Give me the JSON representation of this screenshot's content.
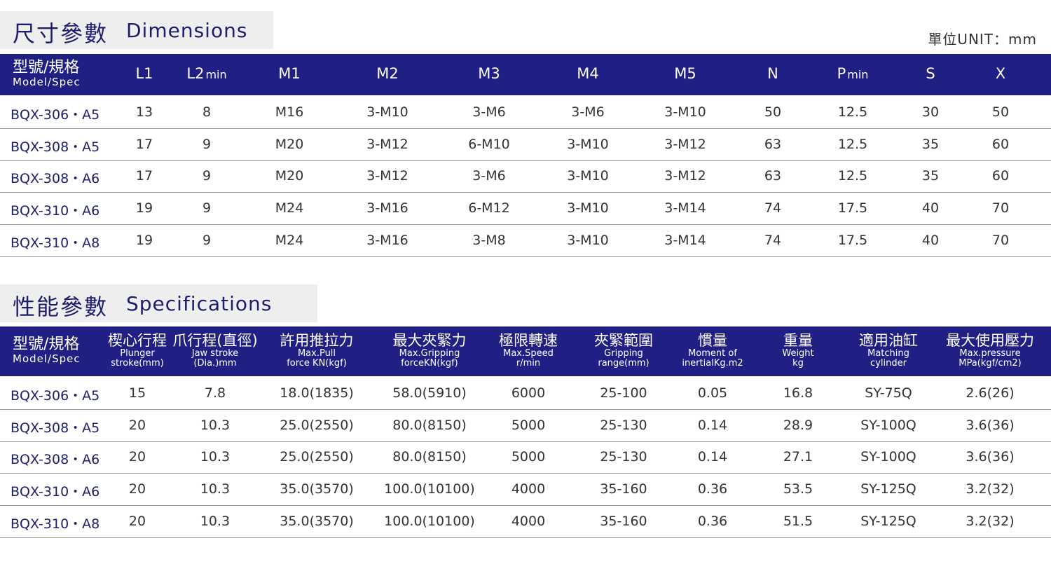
{
  "dimensions": {
    "title_zh": "尺寸參數",
    "title_en": "Dimensions",
    "unit": "單位UNIT：mm",
    "header_model_zh": "型號/規格",
    "header_model_en": "Model/Spec",
    "columns": [
      {
        "main": "L1",
        "sub": ""
      },
      {
        "main": "L2",
        "sub": "min"
      },
      {
        "main": "M1",
        "sub": ""
      },
      {
        "main": "M2",
        "sub": ""
      },
      {
        "main": "M3",
        "sub": ""
      },
      {
        "main": "M4",
        "sub": ""
      },
      {
        "main": "M5",
        "sub": ""
      },
      {
        "main": "N",
        "sub": ""
      },
      {
        "main": "P",
        "sub": "min"
      },
      {
        "main": "S",
        "sub": ""
      },
      {
        "main": "X",
        "sub": ""
      }
    ],
    "rows": [
      [
        "BQX-306・A5",
        "13",
        "8",
        "M16",
        "3-M10",
        "3-M6",
        "3-M6",
        "3-M10",
        "50",
        "12.5",
        "30",
        "50"
      ],
      [
        "BQX-308・A5",
        "17",
        "9",
        "M20",
        "3-M12",
        "6-M10",
        "3-M10",
        "3-M12",
        "63",
        "12.5",
        "35",
        "60"
      ],
      [
        "BQX-308・A6",
        "17",
        "9",
        "M20",
        "3-M12",
        "3-M6",
        "3-M10",
        "3-M12",
        "63",
        "12.5",
        "35",
        "60"
      ],
      [
        "BQX-310・A6",
        "19",
        "9",
        "M24",
        "3-M16",
        "6-M12",
        "3-M10",
        "3-M14",
        "74",
        "17.5",
        "40",
        "70"
      ],
      [
        "BQX-310・A8",
        "19",
        "9",
        "M24",
        "3-M16",
        "3-M8",
        "3-M10",
        "3-M14",
        "74",
        "17.5",
        "40",
        "70"
      ]
    ]
  },
  "specifications": {
    "title_zh": "性能參數",
    "title_en": "Specifications",
    "header_model_zh": "型號/規格",
    "header_model_en": "Model/Spec",
    "columns": [
      {
        "zh": "楔心行程",
        "en1": "Plunger",
        "en2": "stroke(mm)"
      },
      {
        "zh": "爪行程(直徑)",
        "en1": "Jaw stroke",
        "en2": "(Dia.)mm"
      },
      {
        "zh": "許用推拉力",
        "en1": "Max.Pull",
        "en2": "force KN(kgf)"
      },
      {
        "zh": "最大夾緊力",
        "en1": "Max.Gripping",
        "en2": "forceKN(kgf)"
      },
      {
        "zh": "極限轉速",
        "en1": "Max.Speed",
        "en2": "r/min"
      },
      {
        "zh": "夾緊範圍",
        "en1": "Gripping",
        "en2": "range(mm)"
      },
      {
        "zh": "慣量",
        "en1": "Moment of",
        "en2": "inertialKg.m2"
      },
      {
        "zh": "重量",
        "en1": "Weight",
        "en2": "kg"
      },
      {
        "zh": "適用油缸",
        "en1": "Matching",
        "en2": "cylinder"
      },
      {
        "zh": "最大使用壓力",
        "en1": "Max.pressure",
        "en2": "MPa(kgf/cm2)"
      }
    ],
    "rows": [
      [
        "BQX-306・A5",
        "15",
        "7.8",
        "18.0(1835)",
        "58.0(5910)",
        "6000",
        "25-100",
        "0.05",
        "16.8",
        "SY-75Q",
        "2.6(26)"
      ],
      [
        "BQX-308・A5",
        "20",
        "10.3",
        "25.0(2550)",
        "80.0(8150)",
        "5000",
        "25-130",
        "0.14",
        "28.9",
        "SY-100Q",
        "3.6(36)"
      ],
      [
        "BQX-308・A6",
        "20",
        "10.3",
        "25.0(2550)",
        "80.0(8150)",
        "5000",
        "25-130",
        "0.14",
        "27.1",
        "SY-100Q",
        "3.6(36)"
      ],
      [
        "BQX-310・A6",
        "20",
        "10.3",
        "35.0(3570)",
        "100.0(10100)",
        "4000",
        "35-160",
        "0.36",
        "53.5",
        "SY-125Q",
        "3.2(32)"
      ],
      [
        "BQX-310・A8",
        "20",
        "10.3",
        "35.0(3570)",
        "100.0(10100)",
        "4000",
        "35-160",
        "0.36",
        "51.5",
        "SY-125Q",
        "3.2(32)"
      ]
    ]
  }
}
